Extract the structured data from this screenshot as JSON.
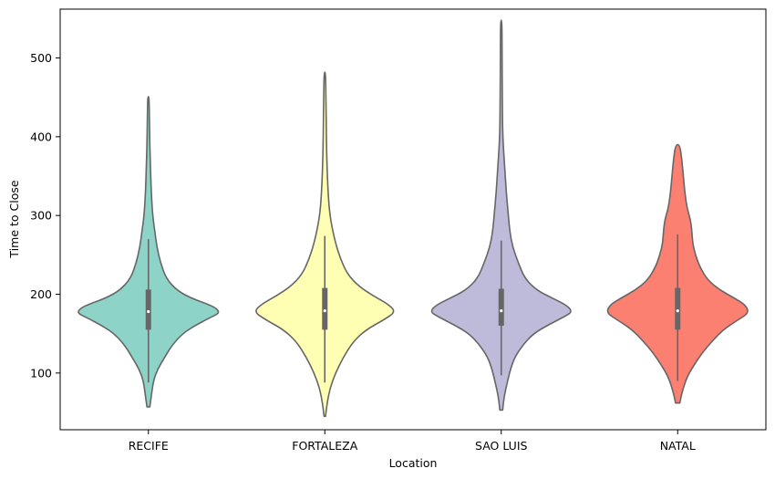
{
  "chart_data": {
    "type": "violin",
    "xlabel": "Location",
    "ylabel": "Time to Close",
    "ylim": [
      28,
      562
    ],
    "yticks": [
      100,
      200,
      300,
      400,
      500
    ],
    "grid": false,
    "legend": "none",
    "categories": [
      "RECIFE",
      "FORTALEZA",
      "SAO LUIS",
      "NATAL"
    ],
    "colors": [
      "#8dd3c7",
      "#ffffb3",
      "#bebada",
      "#fb8072"
    ],
    "line_color": "#666666",
    "series": [
      {
        "category": "RECIFE",
        "min": 57,
        "max": 451,
        "whisker_low": 88,
        "q1": 155,
        "median": 178,
        "q3": 206,
        "whisker_high": 270,
        "density": [
          [
            57,
            0.02
          ],
          [
            70,
            0.04
          ],
          [
            90,
            0.07
          ],
          [
            105,
            0.13
          ],
          [
            120,
            0.23
          ],
          [
            135,
            0.33
          ],
          [
            150,
            0.48
          ],
          [
            160,
            0.65
          ],
          [
            170,
            0.86
          ],
          [
            176,
            1.0
          ],
          [
            182,
            0.96
          ],
          [
            188,
            0.82
          ],
          [
            195,
            0.6
          ],
          [
            205,
            0.4
          ],
          [
            220,
            0.25
          ],
          [
            240,
            0.17
          ],
          [
            260,
            0.12
          ],
          [
            280,
            0.09
          ],
          [
            300,
            0.06
          ],
          [
            330,
            0.04
          ],
          [
            360,
            0.03
          ],
          [
            390,
            0.02
          ],
          [
            420,
            0.015
          ],
          [
            451,
            0.01
          ]
        ]
      },
      {
        "category": "FORTALEZA",
        "min": 45,
        "max": 482,
        "whisker_low": 88,
        "q1": 155,
        "median": 179,
        "q3": 208,
        "whisker_high": 274,
        "density": [
          [
            45,
            0.01
          ],
          [
            60,
            0.03
          ],
          [
            80,
            0.07
          ],
          [
            100,
            0.15
          ],
          [
            120,
            0.26
          ],
          [
            140,
            0.4
          ],
          [
            155,
            0.58
          ],
          [
            168,
            0.84
          ],
          [
            178,
            1.0
          ],
          [
            188,
            0.88
          ],
          [
            198,
            0.68
          ],
          [
            210,
            0.48
          ],
          [
            225,
            0.32
          ],
          [
            245,
            0.22
          ],
          [
            265,
            0.15
          ],
          [
            290,
            0.09
          ],
          [
            310,
            0.06
          ],
          [
            340,
            0.04
          ],
          [
            380,
            0.025
          ],
          [
            420,
            0.02
          ],
          [
            450,
            0.015
          ],
          [
            482,
            0.01
          ]
        ]
      },
      {
        "category": "SAO LUIS",
        "min": 53,
        "max": 548,
        "whisker_low": 97,
        "q1": 160,
        "median": 179,
        "q3": 207,
        "whisker_high": 268,
        "density": [
          [
            53,
            0.02
          ],
          [
            70,
            0.04
          ],
          [
            90,
            0.09
          ],
          [
            105,
            0.13
          ],
          [
            120,
            0.19
          ],
          [
            135,
            0.3
          ],
          [
            150,
            0.45
          ],
          [
            162,
            0.68
          ],
          [
            172,
            0.9
          ],
          [
            178,
            1.0
          ],
          [
            186,
            0.92
          ],
          [
            195,
            0.72
          ],
          [
            205,
            0.5
          ],
          [
            220,
            0.33
          ],
          [
            240,
            0.24
          ],
          [
            260,
            0.16
          ],
          [
            280,
            0.12
          ],
          [
            300,
            0.1
          ],
          [
            330,
            0.07
          ],
          [
            360,
            0.05
          ],
          [
            400,
            0.02
          ],
          [
            450,
            0.015
          ],
          [
            500,
            0.012
          ],
          [
            548,
            0.01
          ]
        ]
      },
      {
        "category": "NATAL",
        "min": 62,
        "max": 390,
        "whisker_low": 90,
        "q1": 155,
        "median": 179,
        "q3": 208,
        "whisker_high": 276,
        "density": [
          [
            62,
            0.03
          ],
          [
            75,
            0.06
          ],
          [
            95,
            0.13
          ],
          [
            110,
            0.23
          ],
          [
            125,
            0.34
          ],
          [
            140,
            0.48
          ],
          [
            155,
            0.64
          ],
          [
            167,
            0.84
          ],
          [
            176,
            1.0
          ],
          [
            186,
            0.96
          ],
          [
            195,
            0.8
          ],
          [
            205,
            0.6
          ],
          [
            218,
            0.42
          ],
          [
            235,
            0.31
          ],
          [
            250,
            0.25
          ],
          [
            265,
            0.21
          ],
          [
            280,
            0.2
          ],
          [
            295,
            0.18
          ],
          [
            310,
            0.13
          ],
          [
            330,
            0.1
          ],
          [
            350,
            0.08
          ],
          [
            370,
            0.06
          ],
          [
            390,
            0.03
          ]
        ]
      }
    ]
  }
}
